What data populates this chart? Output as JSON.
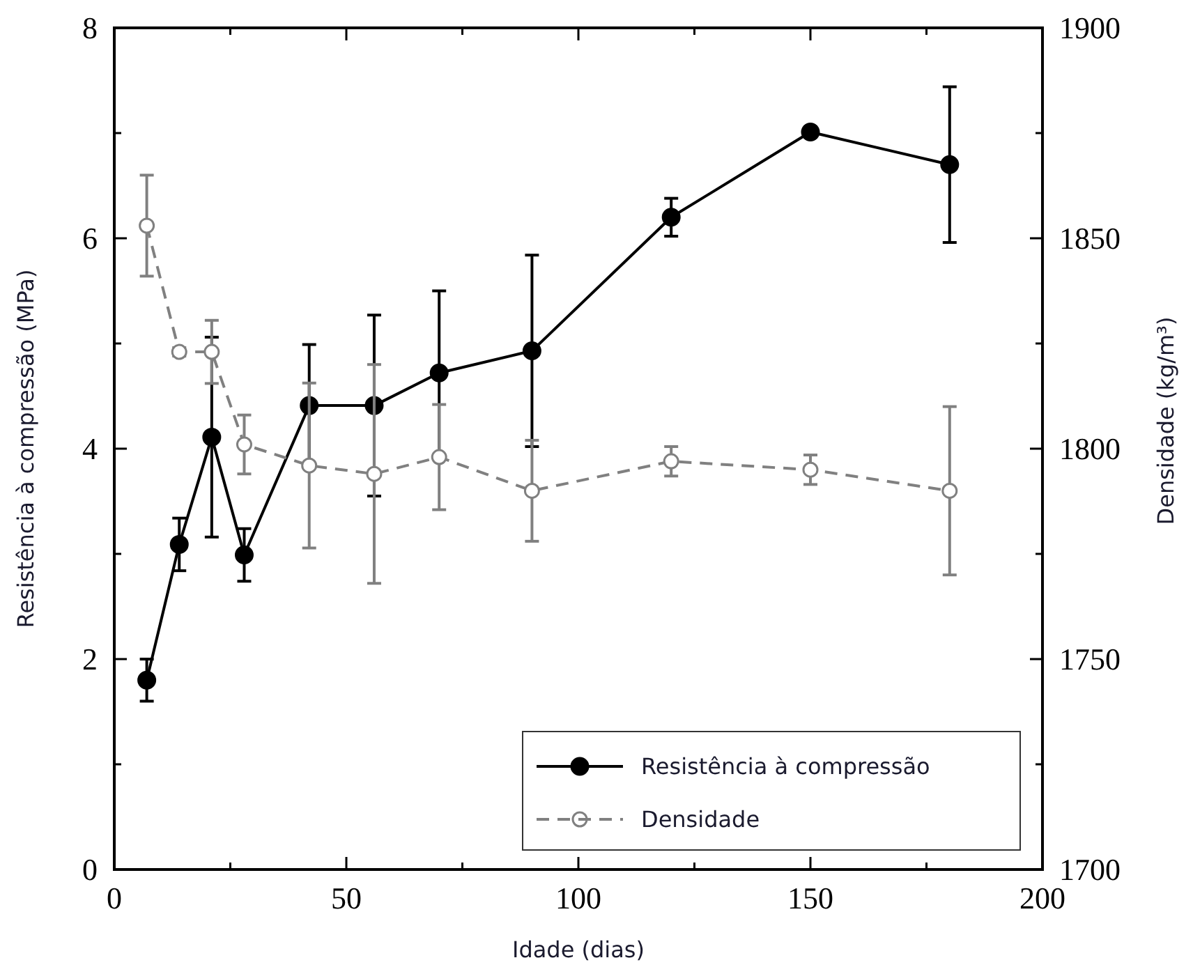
{
  "chart_data": {
    "type": "line",
    "xlabel": "Idade (dias)",
    "ylabel": "Resistência à compressão (MPa)",
    "y2label": "Densidade (kg/m³)",
    "x": [
      7,
      14,
      21,
      28,
      42,
      56,
      70,
      90,
      120,
      150,
      180
    ],
    "series": [
      {
        "name": "Resistência à compressão",
        "color": "#000000",
        "line_style": "solid",
        "marker": "circle",
        "values": [
          1.8,
          3.09,
          4.11,
          2.99,
          4.41,
          4.41,
          4.72,
          4.93,
          6.2,
          7.01,
          6.7
        ],
        "errors": [
          0.2,
          0.25,
          0.95,
          0.25,
          0.58,
          0.86,
          0.78,
          0.91,
          0.18,
          0.05,
          0.74
        ]
      },
      {
        "name": "Densidade",
        "color": "#808080",
        "line_style": "dashed",
        "marker": "circle",
        "axis": "y2",
        "values": [
          1853,
          1823,
          1823,
          1801,
          1796,
          1794,
          1798,
          1790,
          1797,
          1795,
          1790
        ],
        "errors": [
          12,
          1,
          7.5,
          7,
          19.6,
          26,
          12.5,
          12,
          3.5,
          3.5,
          20
        ]
      }
    ],
    "xlim": [
      0,
      200
    ],
    "xticks": [
      0,
      {
        "value": 25,
        "label": null
      },
      50,
      {
        "value": 75,
        "label": null
      },
      100,
      {
        "value": 125,
        "label": null
      },
      150,
      {
        "value": 175,
        "label": null
      },
      200
    ],
    "ylim": [
      0,
      8
    ],
    "yticks": [
      0,
      {
        "value": 1,
        "label": null
      },
      2,
      {
        "value": 3,
        "label": null
      },
      4,
      {
        "value": 5,
        "label": null
      },
      6,
      {
        "value": 7,
        "label": null
      },
      8
    ],
    "y2lim": [
      1700,
      1900
    ],
    "y2ticks": [
      1700,
      {
        "value": 1725,
        "label": null
      },
      1750,
      {
        "value": 1775,
        "label": null
      },
      1800,
      {
        "value": 1825,
        "label": null
      },
      1850,
      {
        "value": 1875,
        "label": null
      },
      1900
    ],
    "grid": false,
    "legend": "bottom right"
  }
}
